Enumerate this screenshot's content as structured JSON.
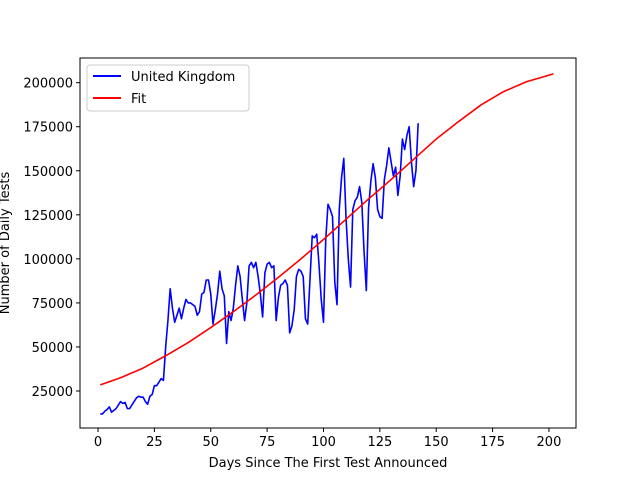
{
  "chart_data": {
    "type": "line",
    "title": "",
    "xlabel": "Days Since The First Test Announced",
    "ylabel": "Number of Daily Tests",
    "xlim": [
      -8,
      212
    ],
    "ylim": [
      4000,
      214000
    ],
    "x_ticks": [
      0,
      25,
      50,
      75,
      100,
      125,
      150,
      175,
      200
    ],
    "y_ticks": [
      25000,
      50000,
      75000,
      100000,
      125000,
      150000,
      175000,
      200000
    ],
    "grid": false,
    "legend_position": "upper-left",
    "series": [
      {
        "name": "United Kingdom",
        "color": "#0000ff",
        "x": [
          1,
          2,
          3,
          4,
          5,
          6,
          7,
          8,
          9,
          10,
          11,
          12,
          13,
          14,
          15,
          16,
          17,
          18,
          19,
          20,
          21,
          22,
          23,
          24,
          25,
          26,
          27,
          28,
          29,
          30,
          31,
          32,
          33,
          34,
          35,
          36,
          37,
          38,
          39,
          40,
          41,
          42,
          43,
          44,
          45,
          46,
          47,
          48,
          49,
          50,
          51,
          52,
          53,
          54,
          55,
          56,
          57,
          58,
          59,
          60,
          61,
          62,
          63,
          64,
          65,
          66,
          67,
          68,
          69,
          70,
          71,
          72,
          73,
          74,
          75,
          76,
          77,
          78,
          79,
          80,
          81,
          82,
          83,
          84,
          85,
          86,
          87,
          88,
          89,
          90,
          91,
          92,
          93,
          94,
          95,
          96,
          97,
          98,
          99,
          100,
          101,
          102,
          103,
          104,
          105,
          106,
          107,
          108,
          109,
          110,
          111,
          112,
          113,
          114,
          115,
          116,
          117,
          118,
          119,
          120,
          121,
          122,
          123,
          124,
          125,
          126,
          127,
          128,
          129,
          130,
          131,
          132,
          133,
          134,
          135,
          136,
          137,
          138,
          139,
          140,
          141,
          142
        ],
        "y": [
          12000,
          12000,
          13500,
          14500,
          16000,
          13000,
          14000,
          15000,
          17000,
          19000,
          18000,
          18500,
          15000,
          15000,
          17000,
          19000,
          21000,
          22000,
          21500,
          21500,
          19000,
          17500,
          22000,
          23000,
          28000,
          28000,
          30000,
          32000,
          31000,
          50000,
          65000,
          83000,
          72000,
          64000,
          68000,
          72000,
          66000,
          72000,
          77000,
          75000,
          75000,
          74000,
          73000,
          68000,
          70000,
          80000,
          81000,
          88000,
          88000,
          80000,
          63000,
          71000,
          80000,
          93000,
          83000,
          79000,
          52000,
          70000,
          65000,
          72000,
          85000,
          96000,
          90000,
          77000,
          65000,
          75000,
          96000,
          98000,
          95000,
          98000,
          90000,
          80000,
          67000,
          92000,
          97000,
          98000,
          95000,
          96000,
          65000,
          78000,
          85000,
          86000,
          88000,
          85000,
          58000,
          62000,
          71000,
          90000,
          94000,
          93000,
          90000,
          66000,
          63000,
          88000,
          113000,
          112000,
          114000,
          97000,
          77000,
          64000,
          111000,
          131000,
          128000,
          124000,
          87000,
          74000,
          128000,
          146000,
          157000,
          123000,
          100000,
          84000,
          128000,
          133000,
          135000,
          141000,
          132000,
          104000,
          82000,
          129000,
          144000,
          154000,
          146000,
          128000,
          124000,
          123000,
          145000,
          153000,
          163000,
          155000,
          147000,
          152000,
          136000,
          147000,
          168000,
          162000,
          170000,
          175000,
          155000,
          141000,
          150000,
          177000
        ]
      },
      {
        "name": "Fit",
        "color": "#ff0000",
        "x": [
          1,
          10,
          20,
          30,
          40,
          50,
          60,
          70,
          80,
          90,
          100,
          110,
          120,
          130,
          140,
          150,
          160,
          170,
          180,
          190,
          202
        ],
        "y": [
          28500,
          32500,
          38000,
          45000,
          52500,
          61000,
          70000,
          79500,
          89500,
          100000,
          111000,
          122500,
          134000,
          145000,
          156500,
          168000,
          178000,
          187500,
          195000,
          200500,
          205000
        ]
      }
    ]
  }
}
